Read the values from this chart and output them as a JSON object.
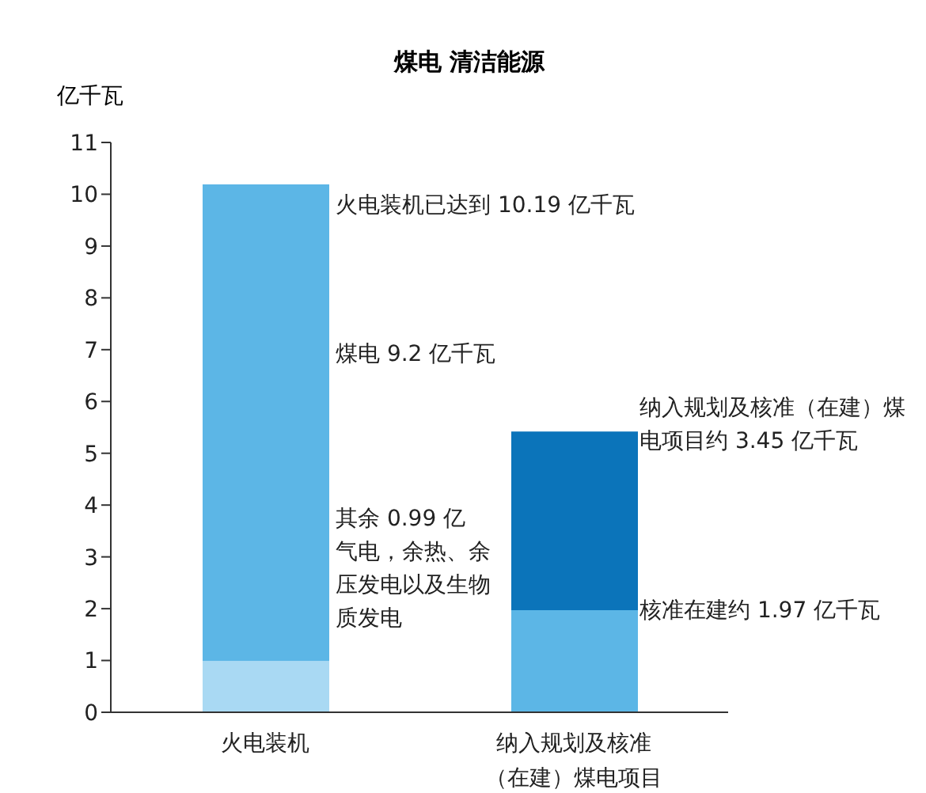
{
  "chart_data": {
    "type": "bar",
    "title": "煤电 清洁能源",
    "ylabel": "亿千瓦",
    "stacked": true,
    "categories": [
      "火电装机",
      "纳入规划及核准（在建）煤电项目"
    ],
    "series": [
      {
        "colors": [
          "#a9d9f3",
          "#5cb6e6"
        ],
        "values": [
          0.99,
          1.97
        ]
      },
      {
        "colors": [
          "#5cb6e6",
          "#0b74ba"
        ],
        "values": [
          9.2,
          3.45
        ]
      }
    ],
    "ylim": [
      0,
      11
    ],
    "yticks": [
      0,
      1,
      2,
      3,
      4,
      5,
      6,
      7,
      8,
      9,
      10,
      11
    ],
    "grid": false,
    "legend": false,
    "annotations": [
      "火电装机已达到 10.19 亿千瓦",
      "煤电 9.2 亿千瓦",
      "其余 0.99 亿气电，余热、余压发电以及生物质发电",
      "纳入规划及核准（在建）煤电项目约 3.45 亿千瓦",
      "核准在建约 1.97 亿千瓦"
    ]
  }
}
